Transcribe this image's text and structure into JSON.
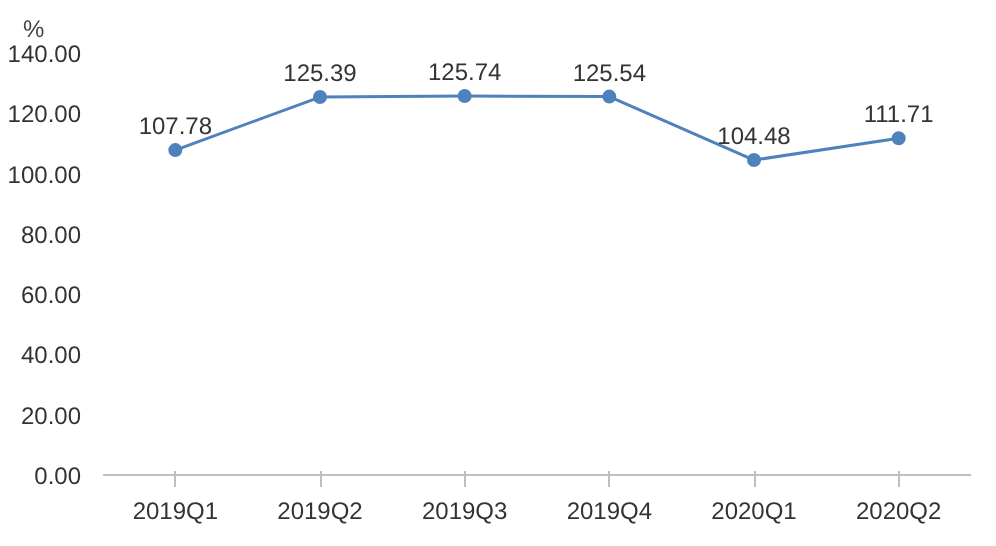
{
  "chart_data": {
    "type": "line",
    "ylabel": "%",
    "categories": [
      "2019Q1",
      "2019Q2",
      "2019Q3",
      "2019Q4",
      "2020Q1",
      "2020Q2"
    ],
    "series": [
      {
        "color": "#4f81bd",
        "values": [
          107.78,
          125.39,
          125.74,
          125.54,
          104.48,
          111.71
        ]
      }
    ],
    "ylim": [
      0,
      140
    ],
    "yticks": [
      {
        "value": 0,
        "label": "0.00"
      },
      {
        "value": 20,
        "label": "20.00"
      },
      {
        "value": 40,
        "label": "40.00"
      },
      {
        "value": 60,
        "label": "60.00"
      },
      {
        "value": 80,
        "label": "80.00"
      },
      {
        "value": 100,
        "label": "100.00"
      },
      {
        "value": 120,
        "label": "120.00"
      },
      {
        "value": 140,
        "label": "140.00"
      }
    ],
    "data_labels": true,
    "marker": "circle"
  }
}
